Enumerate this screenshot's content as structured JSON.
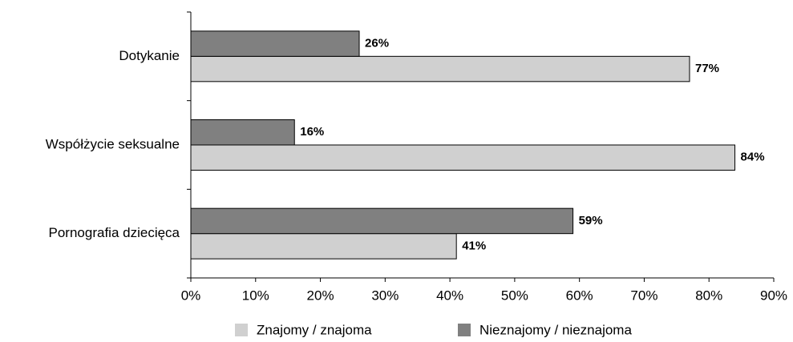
{
  "chart_data": {
    "type": "hbar",
    "categories": [
      "Dotykanie",
      "Współżycie seksualne",
      "Pornografia dziecięca"
    ],
    "series": [
      {
        "name": "Znajomy / znajoma",
        "color": "#d0d0d0",
        "values": [
          77,
          84,
          41
        ],
        "value_labels": [
          "77%",
          "84%",
          "41%"
        ]
      },
      {
        "name": "Nieznajomy / nieznajoma",
        "color": "#808080",
        "values": [
          26,
          16,
          59
        ],
        "value_labels": [
          "26%",
          "16%",
          "59%"
        ]
      }
    ],
    "xlim": [
      0,
      90
    ],
    "xticks": [
      {
        "value": 0,
        "label": "0%"
      },
      {
        "value": 10,
        "label": "10%"
      },
      {
        "value": 20,
        "label": "20%"
      },
      {
        "value": 30,
        "label": "30%"
      },
      {
        "value": 40,
        "label": "40%"
      },
      {
        "value": 50,
        "label": "50%"
      },
      {
        "value": 60,
        "label": "60%"
      },
      {
        "value": 70,
        "label": "70%"
      },
      {
        "value": 80,
        "label": "80%"
      },
      {
        "value": 90,
        "label": "90%"
      }
    ],
    "legend": "bottom"
  }
}
